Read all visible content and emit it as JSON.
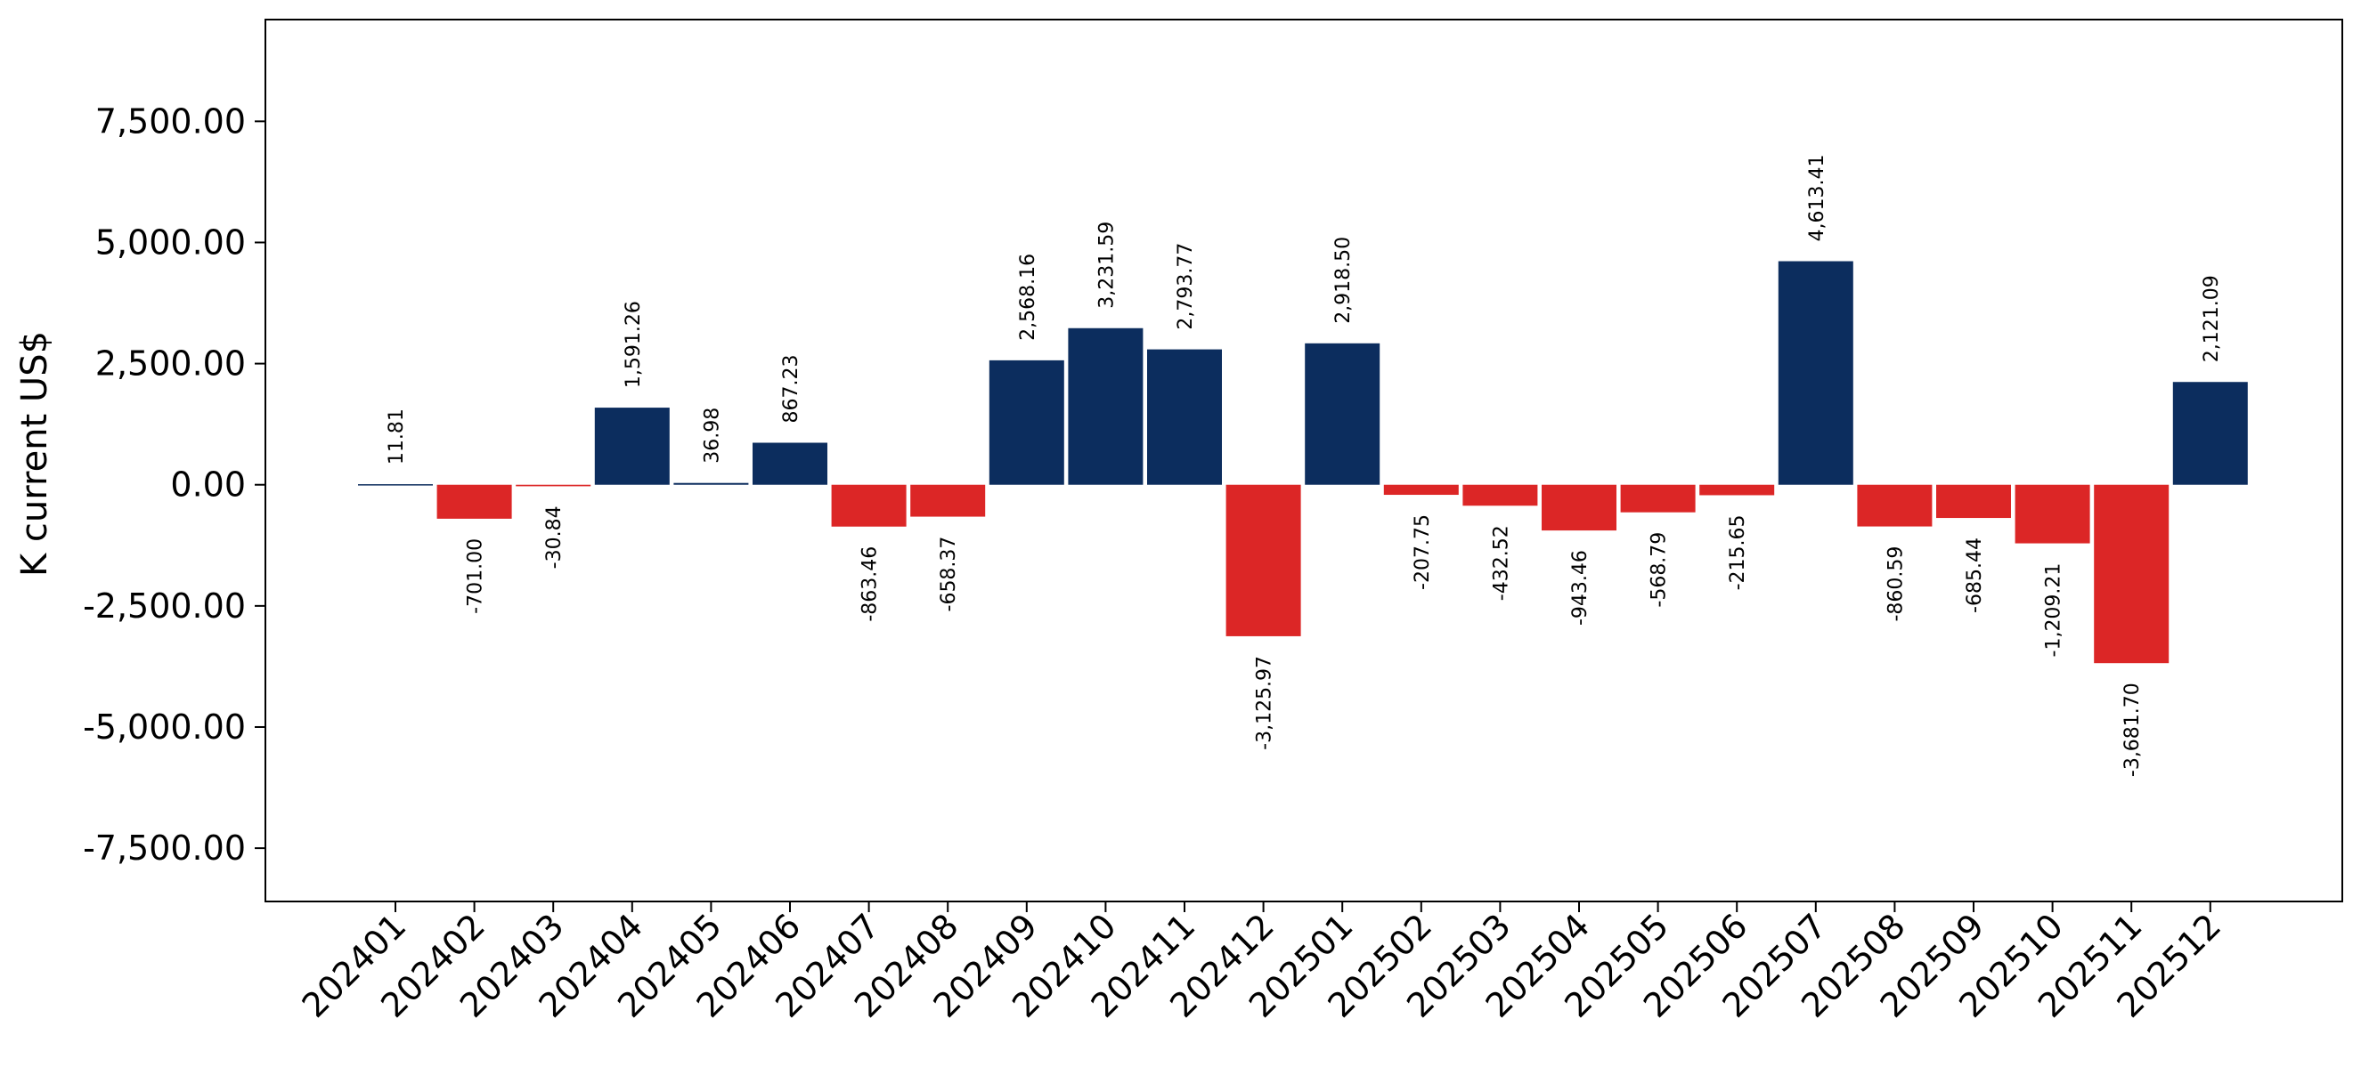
{
  "chart_data": {
    "type": "bar",
    "title": "",
    "xlabel": "",
    "ylabel": "K current US$",
    "categories": [
      "202401",
      "202402",
      "202403",
      "202404",
      "202405",
      "202406",
      "202407",
      "202408",
      "202409",
      "202410",
      "202411",
      "202412",
      "202501",
      "202502",
      "202503",
      "202504",
      "202505",
      "202506",
      "202507",
      "202508",
      "202509",
      "202510",
      "202511",
      "202512"
    ],
    "values": [
      11.81,
      -701.0,
      -30.84,
      1591.26,
      36.98,
      867.23,
      -863.46,
      -658.37,
      2568.16,
      3231.59,
      2793.77,
      -3125.97,
      2918.5,
      -207.75,
      -432.52,
      -943.46,
      -568.79,
      -215.65,
      4613.41,
      -860.59,
      -685.44,
      -1209.21,
      -3681.7,
      2121.09
    ],
    "value_labels": [
      "11.81",
      "-701.00",
      "-30.84",
      "1,591.26",
      "36.98",
      "867.23",
      "-863.46",
      "-658.37",
      "2,568.16",
      "3,231.59",
      "2,793.77",
      "-3,125.97",
      "2,918.50",
      "-207.75",
      "-432.52",
      "-943.46",
      "-568.79",
      "-215.65",
      "4,613.41",
      "-860.59",
      "-685.44",
      "-1,209.21",
      "-3,681.70",
      "2,121.09"
    ],
    "yticks": [
      -7500,
      -5000,
      -2500,
      0,
      2500,
      5000,
      7500
    ],
    "ytick_labels": [
      "-7,500.00",
      "-5,000.00",
      "-2,500.00",
      "0.00",
      "2,500.00",
      "5,000.00",
      "7,500.00"
    ],
    "ylim": [
      -8600,
      9600
    ],
    "grid": false,
    "legend": "none",
    "colors": {
      "positive": "#0c2d5e",
      "negative": "#dc2626"
    }
  }
}
